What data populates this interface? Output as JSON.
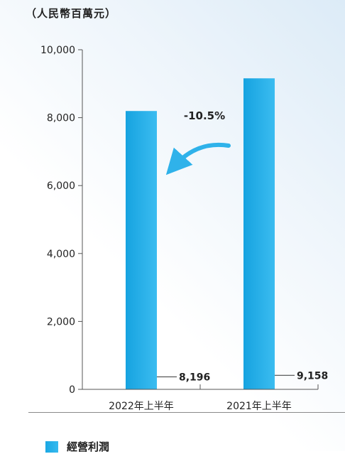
{
  "unit_label": "（人民幣百萬元）",
  "legend": {
    "label": "經營利潤",
    "color": "#1fa9e5"
  },
  "chart_data": {
    "type": "bar",
    "categories": [
      "2022年上半年",
      "2021年上半年"
    ],
    "series": [
      {
        "name": "經營利潤",
        "values": [
          8196,
          9158
        ]
      }
    ],
    "data_labels": [
      "8,196",
      "9,158"
    ],
    "ylim": [
      0,
      10000
    ],
    "yticks": [
      0,
      2000,
      4000,
      6000,
      8000,
      10000
    ],
    "ytick_labels": [
      "0",
      "2,000",
      "4,000",
      "6,000",
      "8,000",
      "10,000"
    ],
    "annotation": "-10.5%",
    "bar_color": "#1fa9e5",
    "grid": false
  }
}
